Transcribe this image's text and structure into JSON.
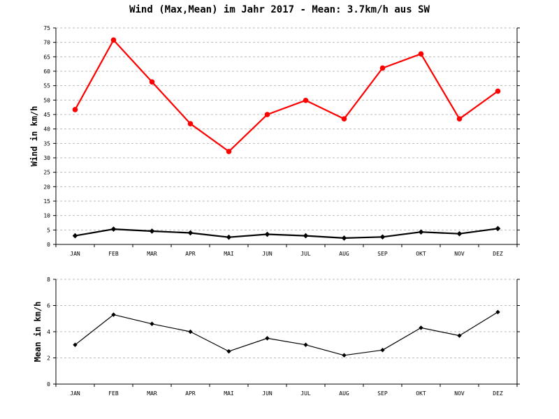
{
  "chart_data": [
    {
      "type": "line",
      "title": "Wind (Max,Mean) im Jahr 2017 - Mean: 3.7km/h aus SW",
      "ylabel": "Wind in km/h",
      "ylim": [
        0,
        75
      ],
      "yticks": [
        0,
        5,
        10,
        15,
        20,
        25,
        30,
        35,
        40,
        45,
        50,
        55,
        60,
        65,
        70,
        75
      ],
      "categories": [
        "JAN",
        "FEB",
        "MAR",
        "APR",
        "MAI",
        "JUN",
        "JUL",
        "AUG",
        "SEP",
        "OKT",
        "NOV",
        "DEZ"
      ],
      "grid": true,
      "series": [
        {
          "color": "#ff0000",
          "marker": "circle",
          "values": [
            46.7,
            70.8,
            56.3,
            41.8,
            32.2,
            45.0,
            49.9,
            43.5,
            61.1,
            66.0,
            43.5,
            53.1
          ]
        },
        {
          "color": "#000000",
          "marker": "diamond",
          "values": [
            3.0,
            5.3,
            4.6,
            4.0,
            2.5,
            3.5,
            3.0,
            2.2,
            2.6,
            4.3,
            3.7,
            5.5
          ]
        }
      ]
    },
    {
      "type": "line",
      "title": "",
      "ylabel": "Mean in km/h",
      "ylim": [
        0,
        8
      ],
      "yticks": [
        0,
        2,
        4,
        6,
        8
      ],
      "categories": [
        "JAN",
        "FEB",
        "MAR",
        "APR",
        "MAI",
        "JUN",
        "JUL",
        "AUG",
        "SEP",
        "OKT",
        "NOV",
        "DEZ"
      ],
      "grid": true,
      "series": [
        {
          "color": "#000000",
          "marker": "diamond",
          "values": [
            3.0,
            5.3,
            4.6,
            4.0,
            2.5,
            3.5,
            3.0,
            2.2,
            2.6,
            4.3,
            3.7,
            5.5
          ]
        }
      ]
    }
  ]
}
